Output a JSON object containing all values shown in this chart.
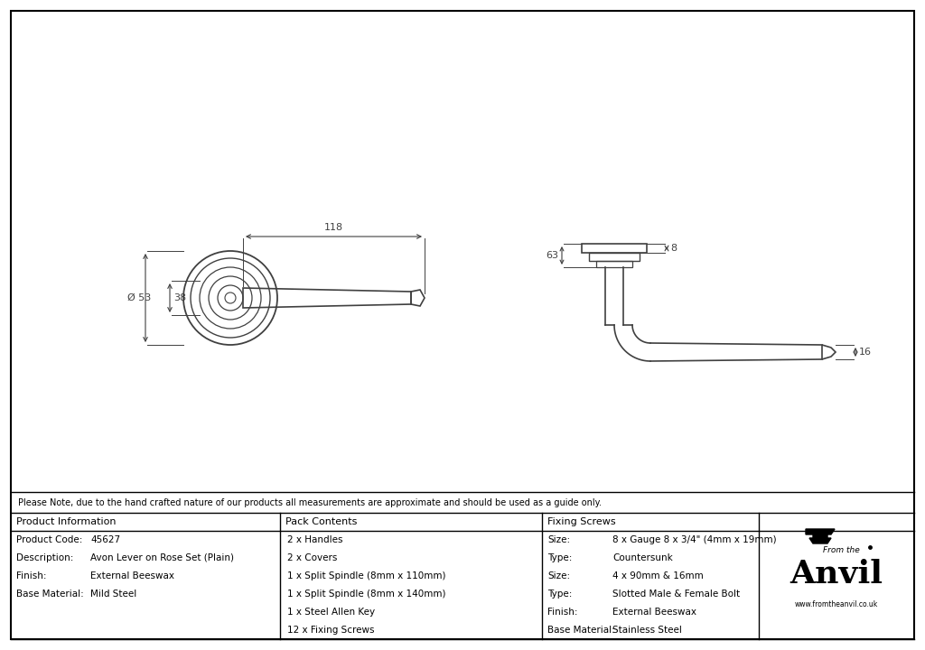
{
  "bg_color": "#ffffff",
  "line_color": "#404040",
  "note_text": "Please Note, due to the hand crafted nature of our products all measurements are approximate and should be used as a guide only.",
  "product_info": {
    "header": "Product Information",
    "rows": [
      [
        "Product Code:",
        "45627"
      ],
      [
        "Description:",
        "Avon Lever on Rose Set (Plain)"
      ],
      [
        "Finish:",
        "External Beeswax"
      ],
      [
        "Base Material:",
        "Mild Steel"
      ]
    ]
  },
  "pack_contents": {
    "header": "Pack Contents",
    "items": [
      "2 x Handles",
      "2 x Covers",
      "1 x Split Spindle (8mm x 110mm)",
      "1 x Split Spindle (8mm x 140mm)",
      "1 x Steel Allen Key",
      "12 x Fixing Screws"
    ]
  },
  "fixing_screws": {
    "header": "Fixing Screws",
    "rows": [
      [
        "Size:",
        "8 x Gauge 8 x 3/4\" (4mm x 19mm)"
      ],
      [
        "Type:",
        "Countersunk"
      ],
      [
        "Size:",
        "4 x 90mm & 16mm"
      ],
      [
        "Type:",
        "Slotted Male & Female Bolt"
      ],
      [
        "Finish:",
        "External Beeswax"
      ],
      [
        "Base Material:",
        "Stainless Steel"
      ]
    ]
  },
  "dim_118": "118",
  "dim_53": "Ø 53",
  "dim_38": "38",
  "dim_63": "63",
  "dim_8": "8",
  "dim_16": "16"
}
